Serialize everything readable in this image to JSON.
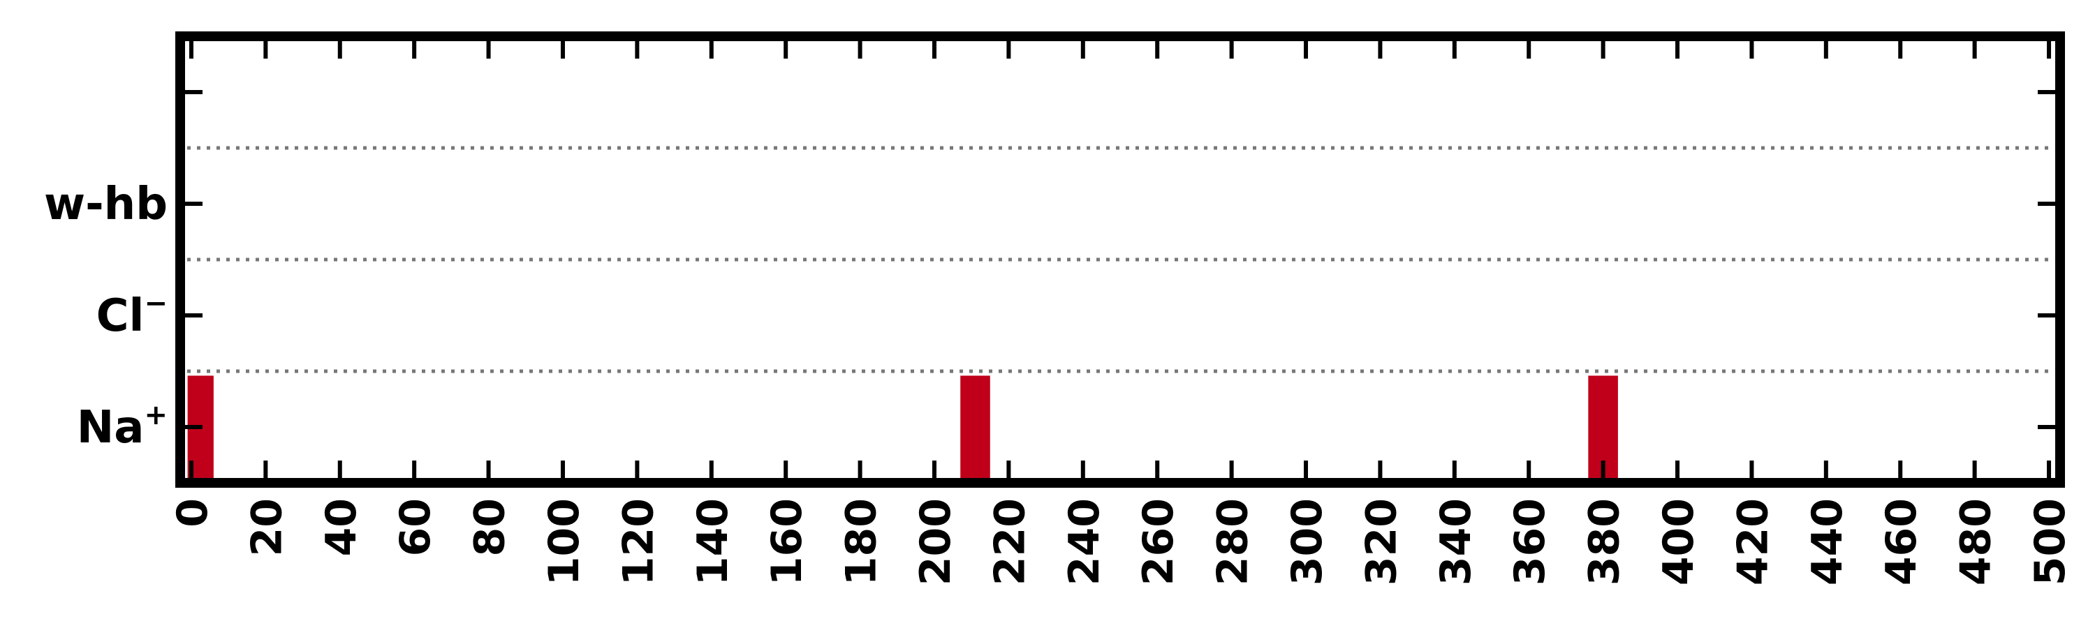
{
  "chart_data": {
    "type": "bar",
    "title": "",
    "xlabel": "",
    "ylabel": "",
    "xlim": [
      -3,
      503
    ],
    "ylim": [
      -0.5,
      3.5
    ],
    "x_ticks": [
      0,
      20,
      40,
      60,
      80,
      100,
      120,
      140,
      160,
      180,
      200,
      220,
      240,
      260,
      280,
      300,
      320,
      340,
      360,
      380,
      400,
      420,
      440,
      460,
      480,
      500
    ],
    "x_tick_labels": [
      "0",
      "20",
      "40",
      "60",
      "80",
      "100",
      "120",
      "140",
      "160",
      "180",
      "200",
      "220",
      "240",
      "260",
      "280",
      "300",
      "320",
      "340",
      "360",
      "380",
      "400",
      "420",
      "440",
      "460",
      "480",
      "500"
    ],
    "y_ticks": [
      0,
      1,
      2,
      3
    ],
    "y_tick_labels": [
      {
        "base": "Na",
        "sup": "+"
      },
      {
        "base": "Cl",
        "sup": "−"
      },
      {
        "base": "w-hb",
        "sup": ""
      },
      {
        "base": "",
        "sup": ""
      }
    ],
    "row_separators": [
      0.5,
      1.5,
      2.5
    ],
    "grid": "dotted horizontal separators",
    "legend": "none",
    "bar_color": "#c0001a",
    "separator_color": "#777777",
    "events": [
      {
        "row": 0,
        "start": -1,
        "end": 6
      },
      {
        "row": 0,
        "start": 207,
        "end": 215
      },
      {
        "row": 0,
        "start": 376,
        "end": 384
      }
    ]
  }
}
